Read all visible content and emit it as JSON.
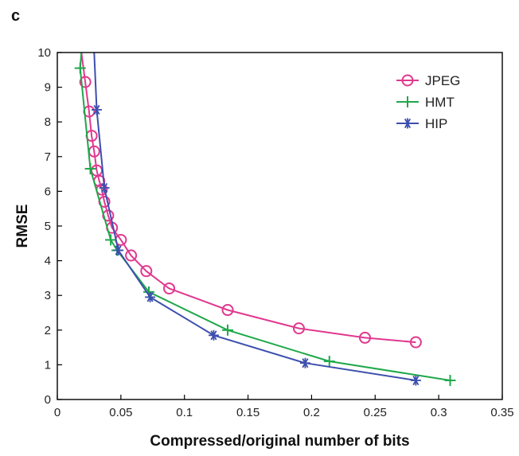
{
  "chart_data": {
    "type": "line",
    "panel_label": "c",
    "xlabel": "Compressed/original number of bits",
    "ylabel": "RMSE",
    "xlim": [
      0,
      0.35
    ],
    "ylim": [
      0,
      10
    ],
    "x_ticks": [
      0,
      0.05,
      0.1,
      0.15,
      0.2,
      0.25,
      0.3,
      0.35
    ],
    "x_tick_labels": [
      "0",
      "0.05",
      "0.1",
      "0.15",
      "0.2",
      "0.25",
      "0.3",
      "0.35"
    ],
    "y_ticks": [
      0,
      1,
      2,
      3,
      4,
      5,
      6,
      7,
      8,
      9,
      10
    ],
    "y_tick_labels": [
      "0",
      "1",
      "2",
      "3",
      "4",
      "5",
      "6",
      "7",
      "8",
      "9",
      "10"
    ],
    "grid": false,
    "legend_position": "top-right",
    "series": [
      {
        "name": "JPEG",
        "color": "#e0388f",
        "marker": "circle",
        "curve_extends_to": [
          0.019,
          10
        ],
        "points": [
          [
            0.022,
            9.15
          ],
          [
            0.025,
            8.3
          ],
          [
            0.027,
            7.6
          ],
          [
            0.029,
            7.15
          ],
          [
            0.031,
            6.6
          ],
          [
            0.033,
            6.3
          ],
          [
            0.035,
            6.05
          ],
          [
            0.037,
            5.7
          ],
          [
            0.04,
            5.3
          ],
          [
            0.043,
            4.95
          ],
          [
            0.05,
            4.6
          ],
          [
            0.058,
            4.15
          ],
          [
            0.07,
            3.7
          ],
          [
            0.088,
            3.2
          ],
          [
            0.134,
            2.58
          ],
          [
            0.19,
            2.05
          ],
          [
            0.242,
            1.78
          ],
          [
            0.282,
            1.65
          ]
        ]
      },
      {
        "name": "HMT",
        "color": "#1ea84a",
        "marker": "plus",
        "curve_extends_to": [
          0.019,
          10
        ],
        "points": [
          [
            0.018,
            9.55
          ],
          [
            0.026,
            6.65
          ],
          [
            0.042,
            4.6
          ],
          [
            0.047,
            4.3
          ],
          [
            0.072,
            3.1
          ],
          [
            0.134,
            2.0
          ],
          [
            0.214,
            1.1
          ],
          [
            0.309,
            0.55
          ]
        ]
      },
      {
        "name": "HIP",
        "color": "#3d4fae",
        "marker": "asterisk",
        "curve_extends_to": [
          0.029,
          10
        ],
        "points": [
          [
            0.031,
            8.35
          ],
          [
            0.037,
            6.1
          ],
          [
            0.048,
            4.3
          ],
          [
            0.073,
            2.95
          ],
          [
            0.123,
            1.85
          ],
          [
            0.195,
            1.05
          ],
          [
            0.282,
            0.55
          ]
        ]
      }
    ]
  }
}
